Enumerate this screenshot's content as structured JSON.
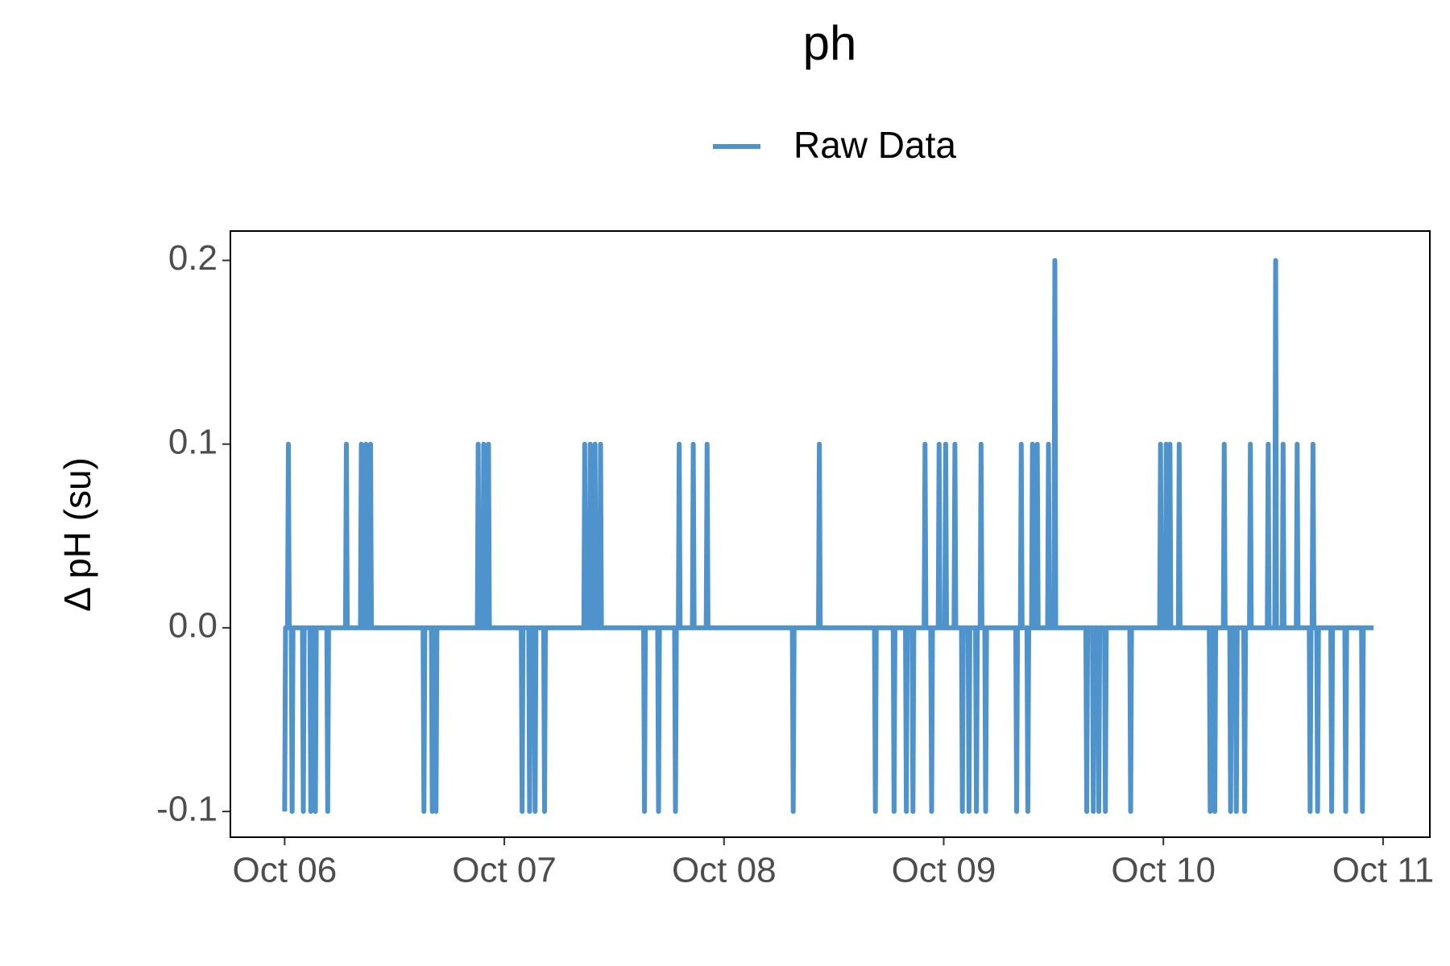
{
  "chart_data": {
    "type": "line",
    "title": "ph",
    "ylabel": "Δ pH (su)",
    "xlim": [
      -0.247,
      5.213
    ],
    "xticks": [
      {
        "value": 0,
        "label": "Oct 06"
      },
      {
        "value": 1,
        "label": "Oct 07"
      },
      {
        "value": 2,
        "label": "Oct 08"
      },
      {
        "value": 3,
        "label": "Oct 09"
      },
      {
        "value": 4,
        "label": "Oct 10"
      },
      {
        "value": 5,
        "label": "Oct 11"
      }
    ],
    "ylim": [
      -0.114,
      0.216
    ],
    "yticks": [
      {
        "value": -0.1,
        "label": "-0.1"
      },
      {
        "value": 0,
        "label": "0.0"
      },
      0.1,
      0.2
    ],
    "legend": "top",
    "series": [
      {
        "name": "Raw Data",
        "color": "#4f93cd",
        "x": [
          0,
          0.004,
          0.013,
          0.017,
          0.021,
          0.03,
          0.034,
          0.038,
          0.081,
          0.085,
          0.089,
          0.115,
          0.119,
          0.123,
          0.136,
          0.14,
          0.144,
          0.192,
          0.196,
          0.2,
          0.277,
          0.281,
          0.285,
          0.345,
          0.349,
          0.353,
          0.366,
          0.37,
          0.374,
          0.387,
          0.391,
          0.395,
          0.63,
          0.634,
          0.638,
          0.668,
          0.672,
          0.676,
          0.685,
          0.689,
          0.693,
          0.877,
          0.881,
          0.885,
          0.902,
          0.906,
          0.91,
          0.924,
          0.928,
          0.932,
          1.077,
          1.081,
          1.085,
          1.111,
          1.115,
          1.119,
          1.136,
          1.14,
          1.144,
          1.179,
          1.183,
          1.187,
          1.362,
          1.366,
          1.37,
          1.387,
          1.391,
          1.395,
          1.409,
          1.413,
          1.417,
          1.434,
          1.438,
          1.442,
          1.634,
          1.638,
          1.642,
          1.698,
          1.702,
          1.706,
          1.775,
          1.779,
          1.783,
          1.792,
          1.796,
          1.8,
          1.856,
          1.86,
          1.864,
          1.919,
          1.923,
          1.927,
          2.311,
          2.315,
          2.319,
          2.43,
          2.434,
          2.438,
          2.685,
          2.689,
          2.693,
          2.77,
          2.774,
          2.778,
          2.826,
          2.83,
          2.834,
          2.856,
          2.86,
          2.864,
          2.911,
          2.915,
          2.919,
          2.941,
          2.945,
          2.949,
          2.975,
          2.979,
          2.983,
          3.005,
          3.009,
          3.013,
          3.047,
          3.051,
          3.055,
          3.081,
          3.085,
          3.089,
          3.111,
          3.115,
          3.119,
          3.145,
          3.149,
          3.153,
          3.166,
          3.17,
          3.174,
          3.187,
          3.191,
          3.195,
          3.328,
          3.332,
          3.336,
          3.349,
          3.353,
          3.357,
          3.379,
          3.383,
          3.387,
          3.4,
          3.404,
          3.408,
          3.422,
          3.426,
          3.43,
          3.473,
          3.477,
          3.481,
          3.502,
          3.506,
          3.51,
          3.647,
          3.651,
          3.655,
          3.677,
          3.681,
          3.685,
          3.702,
          3.706,
          3.71,
          3.732,
          3.736,
          3.74,
          3.847,
          3.851,
          3.855,
          3.983,
          3.987,
          3.991,
          4.009,
          4.013,
          4.017,
          4.026,
          4.03,
          4.034,
          4.068,
          4.072,
          4.076,
          4.209,
          4.213,
          4.217,
          4.23,
          4.234,
          4.238,
          4.273,
          4.277,
          4.281,
          4.302,
          4.306,
          4.31,
          4.328,
          4.332,
          4.336,
          4.366,
          4.37,
          4.374,
          4.392,
          4.396,
          4.4,
          4.473,
          4.477,
          4.481,
          4.507,
          4.511,
          4.515,
          4.541,
          4.545,
          4.549,
          4.605,
          4.609,
          4.613,
          4.664,
          4.668,
          4.672,
          4.677,
          4.681,
          4.685,
          4.698,
          4.702,
          4.706,
          4.762,
          4.766,
          4.77,
          4.826,
          4.83,
          4.834,
          4.902,
          4.906,
          4.91,
          4.957
        ],
        "values": [
          -0.1,
          0,
          0,
          0.1,
          0,
          0,
          -0.1,
          0,
          0,
          -0.1,
          0,
          0,
          -0.1,
          0,
          0,
          -0.1,
          0,
          0,
          -0.1,
          0,
          0,
          0.1,
          0,
          0,
          0.1,
          0,
          0,
          0.1,
          0,
          0,
          0.1,
          0,
          0,
          -0.1,
          0,
          0,
          -0.1,
          0,
          0,
          -0.1,
          0,
          0,
          0.1,
          0,
          0,
          0.1,
          0,
          0,
          0.1,
          0,
          0,
          -0.1,
          0,
          0,
          -0.1,
          0,
          0,
          -0.1,
          0,
          0,
          -0.1,
          0,
          0,
          0.1,
          0,
          0,
          0.1,
          0,
          0,
          0.1,
          0,
          0,
          0.1,
          0,
          0,
          -0.1,
          0,
          0,
          -0.1,
          0,
          0,
          -0.1,
          0,
          0,
          0.1,
          0,
          0,
          0.1,
          0,
          0,
          0.1,
          0,
          0,
          -0.1,
          0,
          0,
          0.1,
          0,
          0,
          -0.1,
          0,
          0,
          -0.1,
          0,
          0,
          -0.1,
          0,
          0,
          -0.1,
          0,
          0,
          0.1,
          0,
          0,
          -0.1,
          0,
          0,
          0.1,
          0,
          0,
          0.1,
          0,
          0,
          0.1,
          0,
          0,
          -0.1,
          0,
          0,
          -0.1,
          0,
          0,
          -0.1,
          0,
          0,
          0.1,
          0,
          0,
          -0.1,
          0,
          0,
          -0.1,
          0,
          0,
          0.1,
          0,
          0,
          -0.1,
          0,
          0,
          0.1,
          0,
          0,
          0.1,
          0,
          0,
          0.1,
          0,
          0,
          0.2,
          0,
          0,
          -0.1,
          0,
          0,
          -0.1,
          0,
          0,
          -0.1,
          0,
          0,
          -0.1,
          0,
          0,
          -0.1,
          0,
          0,
          0.1,
          0,
          0,
          0.1,
          0,
          0,
          0.1,
          0,
          0,
          0.1,
          0,
          0,
          -0.1,
          0,
          0,
          -0.1,
          0,
          0,
          0.1,
          0,
          0,
          -0.1,
          0,
          0,
          -0.1,
          0,
          0,
          -0.1,
          0,
          0,
          0.1,
          0,
          0,
          0.1,
          0,
          0,
          0.2,
          0,
          0,
          0.1,
          0,
          0,
          0.1,
          0,
          0,
          -0.1,
          0,
          0,
          0.1,
          0,
          0,
          -0.1,
          0,
          0,
          -0.1,
          0,
          0,
          -0.1,
          0,
          0,
          -0.1,
          0,
          0
        ]
      }
    ]
  }
}
